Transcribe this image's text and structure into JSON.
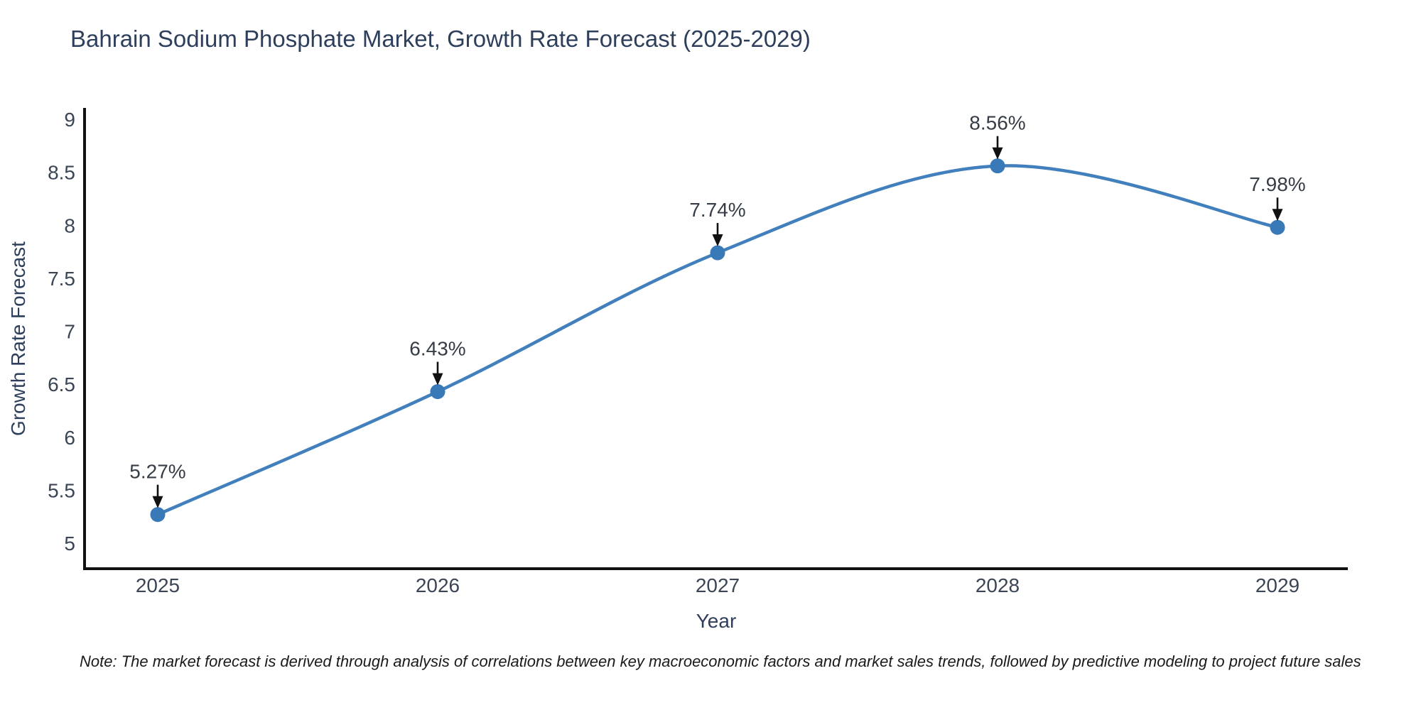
{
  "page": {
    "background": "#ffffff"
  },
  "chart": {
    "title": "Bahrain Sodium Phosphate Market, Growth Rate Forecast (2025-2029)",
    "x_axis_label": "Year",
    "y_axis_label": "Growth Rate Forecast",
    "note": "Note: The market forecast is derived through analysis of correlations between key macroeconomic factors and market sales trends, followed by predictive modeling to project future sales",
    "colors": {
      "title_text": "#2e3f5c",
      "tick_text": "#3b4554",
      "annotation_text": "#363d46",
      "axis_line": "#111111",
      "series_line": "#4180bc",
      "marker_fill": "#3a79b7",
      "arrow": "#111111",
      "note_text": "#1a1a1a"
    }
  },
  "chart_data": {
    "type": "line",
    "title": "Bahrain Sodium Phosphate Market, Growth Rate Forecast (2025-2029)",
    "xlabel": "Year",
    "ylabel": "Growth Rate Forecast",
    "categories": [
      "2025",
      "2026",
      "2027",
      "2028",
      "2029"
    ],
    "series": [
      {
        "name": "Growth Rate Forecast",
        "values": [
          5.27,
          6.43,
          7.74,
          8.56,
          7.98
        ],
        "point_labels": [
          "5.27%",
          "6.43%",
          "7.74%",
          "8.56%",
          "7.98%"
        ]
      }
    ],
    "y_ticks": [
      5,
      5.5,
      6,
      6.5,
      7,
      7.5,
      8,
      8.5,
      9
    ],
    "ylim": [
      4.78,
      9.1
    ],
    "grid": false,
    "legend_position": "none",
    "curve": "spline",
    "annotations": "black arrows pointing down from percentage labels to each data point"
  }
}
